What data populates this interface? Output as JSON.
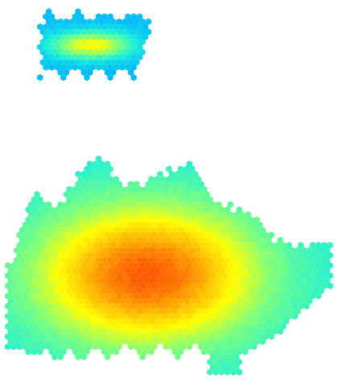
{
  "chart_data": {
    "type": "heatmap",
    "subtype": "hexbin-density",
    "title": "",
    "xlabel": "",
    "ylabel": "",
    "legend": "none",
    "grid": false,
    "axes_visible": false,
    "value_range": [
      0,
      1
    ],
    "colorscale": [
      "#00b7ff",
      "#19f0d8",
      "#7dff7a",
      "#ffff00",
      "#ffb000",
      "#ff5a00"
    ],
    "clusters": [
      {
        "name": "",
        "center": [
          114,
          56
        ],
        "spread": [
          48,
          16
        ],
        "peak_value": 0.62,
        "min_value": 0.02
      },
      {
        "name": "",
        "center": [
          183,
          341
        ],
        "spread": [
          125,
          78
        ],
        "peak_value": 1.0,
        "min_value": 0.2
      }
    ]
  }
}
